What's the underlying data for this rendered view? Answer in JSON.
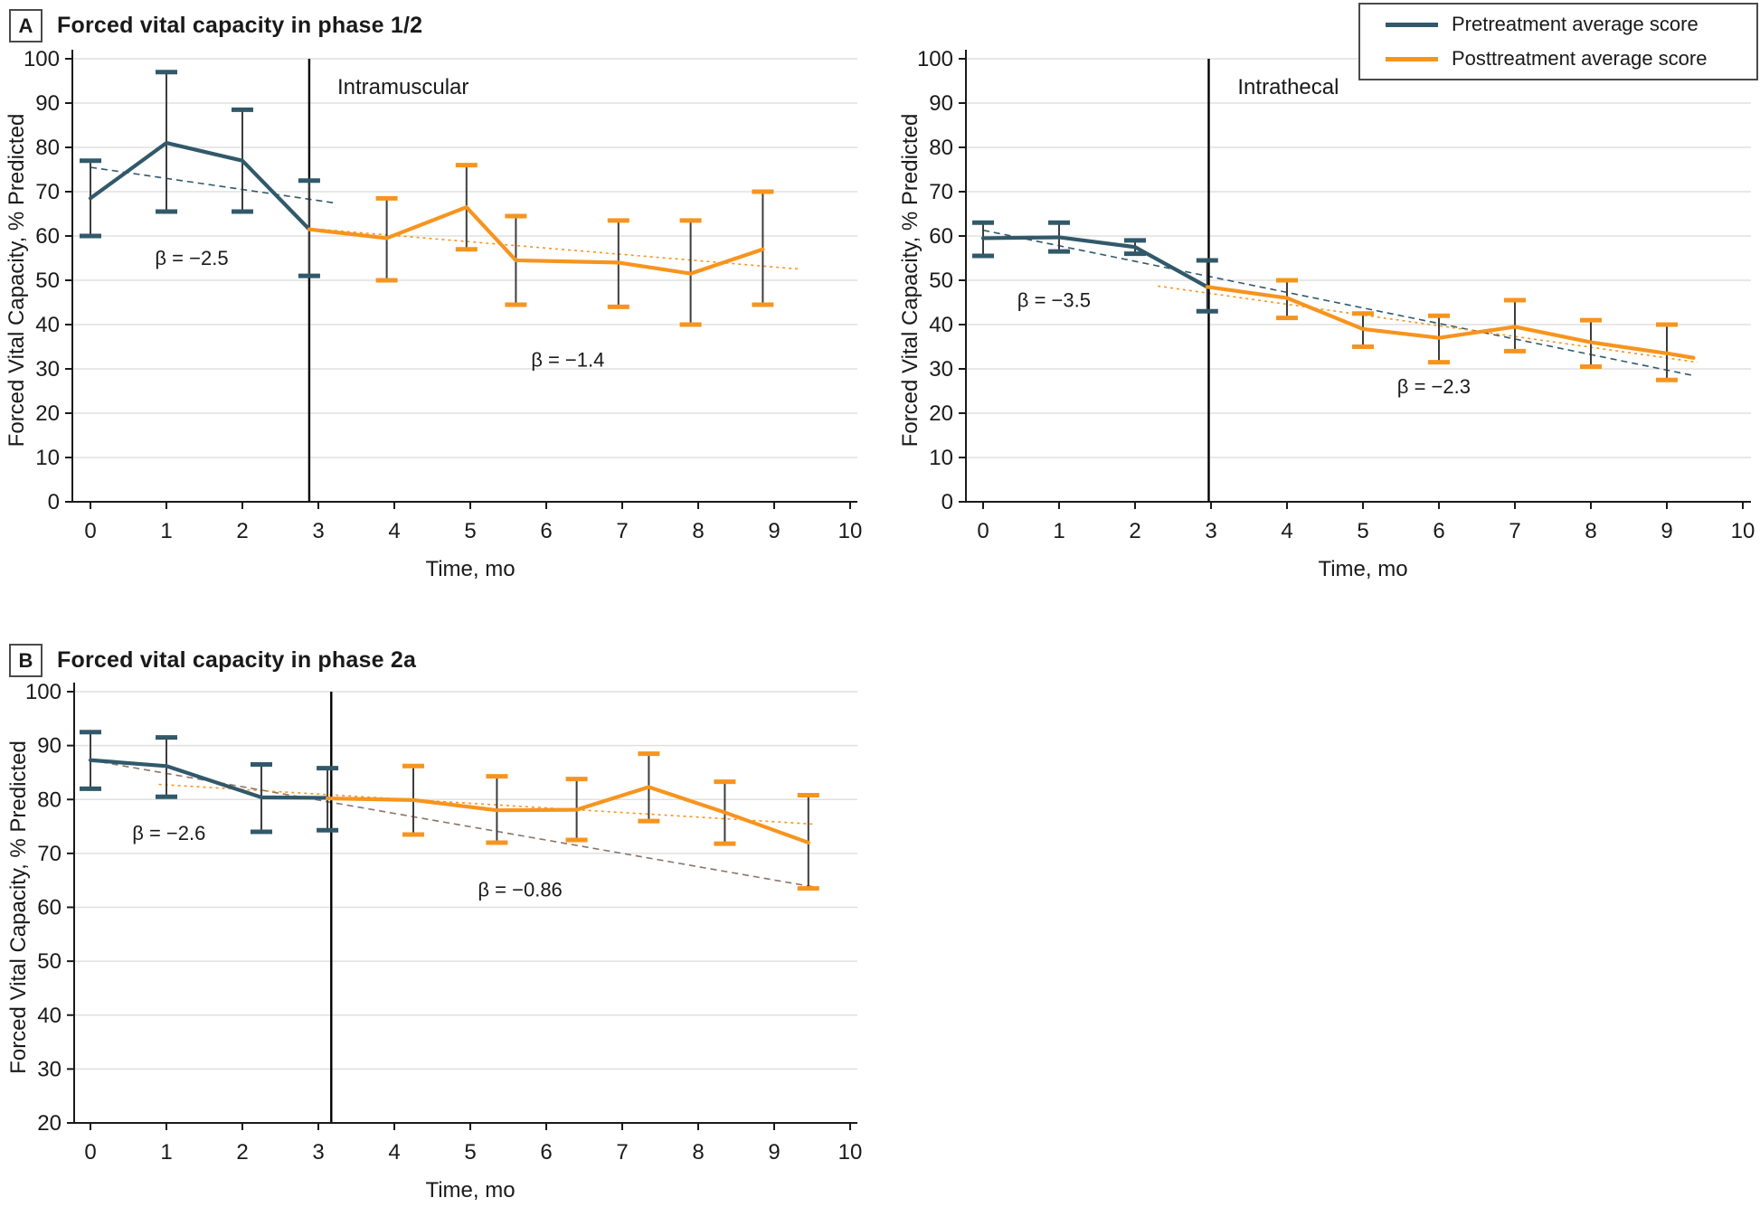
{
  "panels": {
    "a": {
      "tag": "A",
      "title": "Forced vital capacity in phase 1/2"
    },
    "b": {
      "tag": "B",
      "title": "Forced vital capacity in phase 2a"
    }
  },
  "legend": {
    "position": "top-right",
    "items": [
      {
        "label": "Pretreatment average score",
        "color": "#31596A"
      },
      {
        "label": "Posttreatment average score",
        "color": "#F7941E"
      }
    ]
  },
  "styles": {
    "pretreatment_color": "#31596A",
    "posttreatment_color": "#F7941E",
    "trend_pre_b_color": "#8A7468",
    "stem_color": "#3d3d3d",
    "grid_color": "#E0E0E0",
    "axis_color": "#1a1a1a",
    "divider_color": "#000000",
    "text_color": "#1a1a1a",
    "background": "#ffffff"
  },
  "chart_data": [
    {
      "id": "phase12-intramuscular",
      "type": "line",
      "panel": "A",
      "title": "Intramuscular",
      "title_pos": {
        "x": 3.25,
        "y": 92
      },
      "xlabel": "Time, mo",
      "ylabel": "Forced Vital Capacity, % Predicted",
      "xlim": [
        0,
        10
      ],
      "ylim": [
        0,
        100
      ],
      "xtick_step": 1,
      "ytick_step": 10,
      "grid": true,
      "divider_x": 2.88,
      "series": [
        {
          "name": "Pretreatment average score",
          "role": "pretreatment",
          "color": "#31596A",
          "points": [
            {
              "x": 0,
              "y": 68.5,
              "lo": 60,
              "hi": 77
            },
            {
              "x": 1,
              "y": 81,
              "lo": 65.5,
              "hi": 97
            },
            {
              "x": 2,
              "y": 77,
              "lo": 65.5,
              "hi": 88.5
            },
            {
              "x": 2.88,
              "y": 61.5,
              "lo": 51,
              "hi": 72.5
            }
          ]
        },
        {
          "name": "Posttreatment average score",
          "role": "posttreatment",
          "color": "#F7941E",
          "points": [
            {
              "x": 2.88,
              "y": 61.5
            },
            {
              "x": 3.9,
              "y": 59.5,
              "lo": 50,
              "hi": 68.5
            },
            {
              "x": 4.95,
              "y": 66.5,
              "lo": 57,
              "hi": 76
            },
            {
              "x": 5.6,
              "y": 54.5,
              "lo": 44.5,
              "hi": 64.5
            },
            {
              "x": 6.95,
              "y": 54,
              "lo": 44,
              "hi": 63.5
            },
            {
              "x": 7.9,
              "y": 51.5,
              "lo": 40,
              "hi": 63.5
            },
            {
              "x": 8.85,
              "y": 57,
              "lo": 44.5,
              "hi": 70
            }
          ]
        }
      ],
      "trendlines": [
        {
          "role": "pretreatment",
          "color": "#31596A",
          "style": "dashed",
          "x1": 0,
          "y1": 75.5,
          "x2": 3.2,
          "y2": 67.5
        },
        {
          "role": "posttreatment",
          "color": "#F7941E",
          "style": "dotted",
          "x1": 2.88,
          "y1": 61.7,
          "x2": 9.35,
          "y2": 52.5
        }
      ],
      "annotations": [
        {
          "text": "β = −2.5",
          "x": 0.85,
          "y": 53.5
        },
        {
          "text": "β = −1.4",
          "x": 5.8,
          "y": 30.5
        }
      ]
    },
    {
      "id": "phase12-intrathecal",
      "type": "line",
      "panel": "A",
      "title": "Intrathecal",
      "title_pos": {
        "x": 3.35,
        "y": 92
      },
      "xlabel": "Time, mo",
      "ylabel": "Forced Vital Capacity, % Predicted",
      "xlim": [
        0,
        10
      ],
      "ylim": [
        0,
        100
      ],
      "xtick_step": 1,
      "ytick_step": 10,
      "grid": true,
      "divider_x": 2.97,
      "series": [
        {
          "name": "Pretreatment average score",
          "role": "pretreatment",
          "color": "#31596A",
          "points": [
            {
              "x": 0,
              "y": 59.5,
              "lo": 55.5,
              "hi": 63
            },
            {
              "x": 1,
              "y": 59.7,
              "lo": 56.5,
              "hi": 63
            },
            {
              "x": 2,
              "y": 57.5,
              "lo": 56,
              "hi": 59
            },
            {
              "x": 2.95,
              "y": 48.5,
              "lo": 43,
              "hi": 54.5
            }
          ]
        },
        {
          "name": "Posttreatment average score",
          "role": "posttreatment",
          "color": "#F7941E",
          "points": [
            {
              "x": 2.95,
              "y": 48.5
            },
            {
              "x": 4,
              "y": 46,
              "lo": 41.5,
              "hi": 50
            },
            {
              "x": 5,
              "y": 39,
              "lo": 35,
              "hi": 42.5
            },
            {
              "x": 6,
              "y": 37,
              "lo": 31.5,
              "hi": 42
            },
            {
              "x": 7,
              "y": 39.5,
              "lo": 34,
              "hi": 45.5
            },
            {
              "x": 8,
              "y": 36,
              "lo": 30.5,
              "hi": 41
            },
            {
              "x": 9,
              "y": 33.5,
              "lo": 27.5,
              "hi": 40
            },
            {
              "x": 9.35,
              "y": 32.5
            }
          ]
        }
      ],
      "trendlines": [
        {
          "role": "pretreatment",
          "color": "#31596A",
          "style": "dashed",
          "x1": 0,
          "y1": 61.3,
          "x2": 9.35,
          "y2": 28.5
        },
        {
          "role": "posttreatment",
          "color": "#F7941E",
          "style": "dotted",
          "x1": 2.3,
          "y1": 48.7,
          "x2": 9.4,
          "y2": 31.5
        }
      ],
      "annotations": [
        {
          "text": "β = −3.5",
          "x": 0.45,
          "y": 44
        },
        {
          "text": "β = −2.3",
          "x": 5.45,
          "y": 24.5
        }
      ]
    },
    {
      "id": "phase2a",
      "type": "line",
      "panel": "B",
      "title": "",
      "title_pos": {
        "x": 0,
        "y": 0
      },
      "xlabel": "Time, mo",
      "ylabel": "Forced Vital Capacity, % Predicted",
      "xlim": [
        0,
        10
      ],
      "ylim": [
        20,
        100
      ],
      "xtick_step": 1,
      "ytick_step": 10,
      "grid": true,
      "divider_x": 3.17,
      "series": [
        {
          "name": "Pretreatment average score",
          "role": "pretreatment",
          "color": "#31596A",
          "points": [
            {
              "x": 0,
              "y": 87.3,
              "lo": 82,
              "hi": 92.5
            },
            {
              "x": 1,
              "y": 86.2,
              "lo": 80.5,
              "hi": 91.5
            },
            {
              "x": 2.25,
              "y": 80.4,
              "lo": 74,
              "hi": 86.5
            },
            {
              "x": 3.12,
              "y": 80.3,
              "lo": 74.3,
              "hi": 85.8
            }
          ]
        },
        {
          "name": "Posttreatment average score",
          "role": "posttreatment",
          "color": "#F7941E",
          "points": [
            {
              "x": 3.12,
              "y": 80.2
            },
            {
              "x": 4.25,
              "y": 79.9,
              "lo": 73.5,
              "hi": 86.2
            },
            {
              "x": 5.35,
              "y": 78,
              "lo": 72,
              "hi": 84.3
            },
            {
              "x": 6.4,
              "y": 78.1,
              "lo": 72.5,
              "hi": 83.8
            },
            {
              "x": 7.35,
              "y": 82.3,
              "lo": 76,
              "hi": 88.5
            },
            {
              "x": 8.35,
              "y": 77.6,
              "lo": 71.8,
              "hi": 83.3
            },
            {
              "x": 9.45,
              "y": 72,
              "lo": 63.5,
              "hi": 80.8
            }
          ]
        }
      ],
      "trendlines": [
        {
          "role": "pretreatment",
          "color": "#8A7468",
          "style": "dashed",
          "x1": 0,
          "y1": 87.3,
          "x2": 9.55,
          "y2": 63.7
        },
        {
          "role": "posttreatment",
          "color": "#F7941E",
          "style": "dotted",
          "x1": 0.9,
          "y1": 82.8,
          "x2": 9.55,
          "y2": 75.4
        }
      ],
      "annotations": [
        {
          "text": "β = −2.6",
          "x": 0.55,
          "y": 72.5
        },
        {
          "text": "β = −0.86",
          "x": 5.1,
          "y": 62
        }
      ]
    }
  ]
}
